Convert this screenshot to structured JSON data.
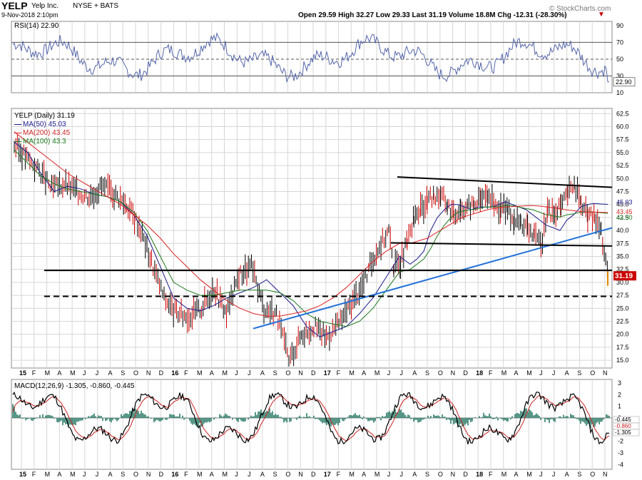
{
  "header": {
    "symbol": "YELP",
    "company": "Yelp Inc.",
    "exchange": "NYSE + BATS",
    "date": "9-Nov-2018 2:10pm",
    "quote": "Open 29.59  High 32.27  Low 29.33  Last 31.19  Volume 18.8M  Chg -12.31 (-28.30%)",
    "quote_arrow": "▼",
    "watermark": "© StockCharts.com"
  },
  "colors": {
    "price_up": "#000000",
    "price_down": "#cc0000",
    "ma50": "#1a1a8c",
    "ma200": "#dd2222",
    "ma100": "#1b7a1b",
    "trendline": "#1e6fd9",
    "rsi_line": "#5566aa",
    "macd_hist": "#2e7d6a",
    "last_price_box": "#cc0000",
    "grid": "#d6d6d6"
  },
  "chart_data": [
    {
      "type": "line",
      "title": "RSI(14) 22.90",
      "series": [
        {
          "name": "RSI(14)",
          "last": 22.9
        }
      ],
      "ylim": [
        10,
        95
      ],
      "ticks": [
        90,
        70,
        50,
        30,
        10
      ],
      "levels": [
        70,
        50,
        30
      ],
      "value_label": "22.90"
    },
    {
      "type": "line",
      "title": "YELP (Daily) 31.19",
      "ylim": [
        13.5,
        63.5
      ],
      "y_ticks": [
        62.5,
        60.0,
        57.5,
        55.0,
        52.5,
        50.0,
        47.5,
        45.0,
        42.5,
        40.0,
        37.5,
        35.0,
        32.5,
        30.0,
        27.5,
        25.0,
        22.5,
        20.0,
        17.5,
        15.0
      ],
      "x_labels": [
        "15",
        "F",
        "M",
        "A",
        "M",
        "J",
        "J",
        "A",
        "S",
        "O",
        "N",
        "D",
        "16",
        "F",
        "M",
        "A",
        "M",
        "J",
        "J",
        "A",
        "S",
        "O",
        "N",
        "D",
        "17",
        "F",
        "M",
        "A",
        "M",
        "J",
        "J",
        "A",
        "S",
        "O",
        "N",
        "D",
        "18",
        "F",
        "M",
        "A",
        "M",
        "J",
        "J",
        "A",
        "S",
        "O",
        "N"
      ],
      "x": [
        0,
        20,
        40,
        60,
        80,
        100,
        120,
        140,
        160,
        180,
        200,
        220,
        240,
        260,
        280,
        300,
        320,
        340,
        360,
        380,
        400,
        420,
        440,
        460,
        480,
        500,
        520,
        540,
        560,
        580,
        600,
        620,
        640,
        660,
        680,
        700,
        720,
        740,
        760,
        780,
        800,
        820,
        840,
        860,
        880,
        900,
        920,
        940,
        960
      ],
      "price": [
        56.5,
        54,
        51.5,
        48,
        49,
        47.5,
        46.5,
        48.5,
        47,
        45,
        41,
        34,
        27,
        24,
        23.5,
        25,
        29,
        24,
        31.5,
        33,
        25,
        24,
        15,
        20,
        21.5,
        19.5,
        22,
        26,
        30,
        36,
        40,
        41.5,
        39,
        38,
        40,
        42,
        41,
        36,
        36,
        34.5,
        33,
        34.5,
        32.5,
        31.5,
        29,
        29.5,
        29.2,
        30.5,
        33
      ],
      "price_b": [
        33,
        34,
        37.5,
        42,
        44,
        45.5,
        46.5,
        47,
        45,
        43,
        44.5,
        44.5,
        45,
        46,
        47,
        45,
        44,
        44,
        42,
        41.5,
        40.5,
        39,
        37,
        44,
        43,
        44.5,
        47,
        49,
        45,
        43,
        42.5,
        40,
        31.19
      ],
      "series": [
        {
          "name": "MA(50)",
          "last": 45.03
        },
        {
          "name": "MA(200)",
          "last": 43.45
        },
        {
          "name": "MA(100)",
          "last": 43.3
        }
      ],
      "ma50": [
        57,
        55,
        51,
        47.5,
        48.5,
        48,
        47,
        46.5,
        45.5,
        43,
        39,
        33,
        27,
        25,
        24.5,
        25.5,
        27,
        28,
        29,
        30.5,
        28,
        25.5,
        21.5,
        19.5,
        20.5,
        21.5,
        24,
        27,
        31,
        35,
        38.5,
        40,
        38.5,
        38.5,
        39.5,
        39,
        37,
        34.5,
        34,
        33,
        32.5,
        32,
        31,
        30,
        29.5,
        29.5,
        30.5,
        32.5
      ],
      "ma50_b": [
        33.5,
        34.5,
        36,
        40,
        42.5,
        44,
        45,
        45,
        44.5,
        44,
        44.5,
        44.5,
        44.5,
        45,
        45.5,
        45,
        44.5,
        44,
        43,
        42,
        41,
        40.5,
        40,
        42,
        43,
        44.5,
        45,
        45.2,
        45.1,
        45.03
      ],
      "ma100": [
        55.5,
        53,
        50.5,
        49,
        48,
        47.5,
        47,
        46.5,
        45.5,
        43.5,
        40,
        35,
        30,
        28.5,
        27.5,
        27.5,
        28,
        28.5,
        28.5,
        28.5,
        28,
        26.5,
        24,
        22.5,
        22,
        21.5,
        22.5,
        25,
        28.5,
        32,
        35,
        37,
        38,
        38.5,
        39,
        38.5,
        37,
        35,
        34.5,
        33.5,
        33,
        32.5,
        32,
        31,
        30.5,
        30,
        30.5,
        31.5
      ],
      "ma100_b": [
        32.5,
        33.5,
        34.5,
        36.5,
        39,
        41,
        42.5,
        43.5,
        43.8,
        44,
        44.2,
        44.5,
        44.5,
        44.6,
        44.8,
        44.8,
        44.5,
        44.2,
        44,
        43.5,
        43,
        42.8,
        42.6,
        43,
        43.2,
        43.5,
        43.6,
        43.5,
        43.4,
        43.3
      ],
      "ma200": [
        59,
        57,
        55,
        53,
        51,
        49.5,
        48,
        46.5,
        45,
        43,
        41,
        38.5,
        35.5,
        33,
        30.5,
        28.5,
        26.5,
        25,
        24,
        23.5,
        23.5,
        24,
        24.5,
        25.5,
        27,
        29,
        31.5,
        34,
        36,
        37.5,
        38.5,
        38.5,
        38,
        37.5,
        37,
        36.5,
        35.5,
        35,
        34.5,
        34,
        33.5,
        33.5,
        34,
        35,
        36,
        37
      ],
      "ma200_b": [
        37.5,
        38,
        38.5,
        39.5,
        40.5,
        41.5,
        42.5,
        43,
        43.5,
        44,
        44.3,
        44.5,
        44.6,
        44.7,
        44.8,
        44.7,
        44.5,
        44.3,
        44,
        43.8,
        43.6,
        43.5,
        43.5,
        43.45
      ],
      "trendlines": [
        {
          "from": [
            355,
            21.1
          ],
          "to": [
            900,
            40.5
          ],
          "style": "solid",
          "color": "#1e6fd9"
        },
        {
          "from": [
            62,
            32.3
          ],
          "to": [
            900,
            32.3
          ],
          "style": "solid"
        },
        {
          "from": [
            62,
            27.3
          ],
          "to": [
            900,
            27.3
          ],
          "style": "dashed"
        },
        {
          "from": [
            557,
            50.3
          ],
          "to": [
            860,
            48.3
          ],
          "style": "solid"
        },
        {
          "from": [
            548,
            37.6
          ],
          "to": [
            860,
            37.0
          ],
          "style": "solid"
        }
      ],
      "last_value": "31.19",
      "ma_labels": [
        "45.03",
        "43.45",
        "43.30"
      ]
    },
    {
      "type": "line",
      "title": "MACD(12,26,9) -1.305, -0.860, -0.445",
      "series": [
        {
          "name": "MACD",
          "last": -1.305
        },
        {
          "name": "Signal",
          "last": -0.86
        },
        {
          "name": "Histogram",
          "last": -0.445
        }
      ],
      "ylim": [
        -4.4,
        3.3
      ],
      "ticks": [
        3,
        2,
        1,
        0,
        -1,
        -2,
        -3,
        -4
      ],
      "value_labels": [
        "-0.445",
        "-0.860",
        "-1.305"
      ]
    }
  ]
}
